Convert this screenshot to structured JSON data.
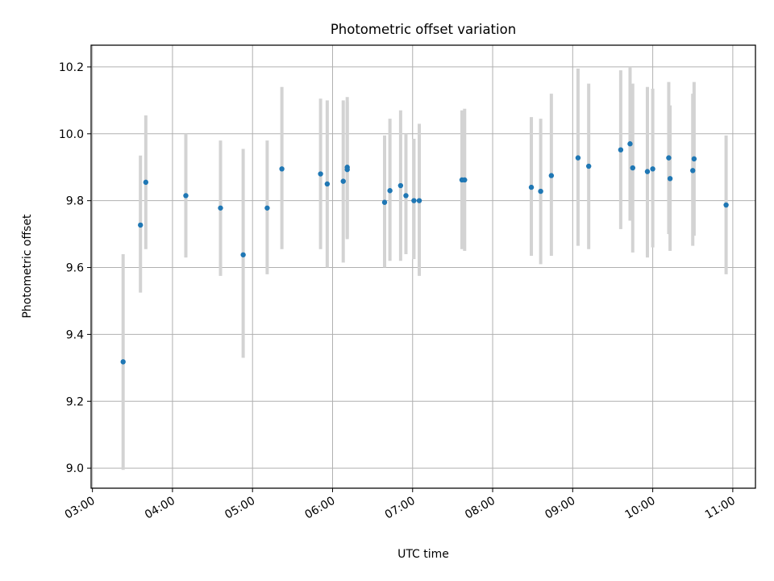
{
  "chart_data": {
    "type": "scatter",
    "title": "Photometric offset variation",
    "xlabel": "UTC time",
    "ylabel": "Photometric offset",
    "xlim": [
      "02:59",
      "11:17"
    ],
    "ylim": [
      8.94,
      10.265
    ],
    "grid": true,
    "x_ticks": [
      "03:00",
      "04:00",
      "05:00",
      "06:00",
      "07:00",
      "08:00",
      "09:00",
      "10:00",
      "11:00"
    ],
    "y_ticks": [
      9.0,
      9.2,
      9.4,
      9.6,
      9.8,
      10.0,
      10.2
    ],
    "series": [
      {
        "marker_color": "#1f77b4",
        "errorbar_color": "#d3d3d3",
        "points": [
          {
            "x": "03:23",
            "y": 9.318,
            "low": 8.995,
            "high": 9.64
          },
          {
            "x": "03:36",
            "y": 9.727,
            "low": 9.525,
            "high": 9.935
          },
          {
            "x": "03:40",
            "y": 9.855,
            "low": 9.655,
            "high": 10.055
          },
          {
            "x": "04:10",
            "y": 9.815,
            "low": 9.63,
            "high": 10.0
          },
          {
            "x": "04:36",
            "y": 9.778,
            "low": 9.575,
            "high": 9.98
          },
          {
            "x": "04:53",
            "y": 9.638,
            "low": 9.33,
            "high": 9.955
          },
          {
            "x": "05:11",
            "y": 9.778,
            "low": 9.58,
            "high": 9.98
          },
          {
            "x": "05:22",
            "y": 9.895,
            "low": 9.655,
            "high": 10.14
          },
          {
            "x": "05:51",
            "y": 9.88,
            "low": 9.655,
            "high": 10.105
          },
          {
            "x": "05:56",
            "y": 9.85,
            "low": 9.6,
            "high": 10.1
          },
          {
            "x": "06:08",
            "y": 9.858,
            "low": 9.615,
            "high": 10.1
          },
          {
            "x": "06:11",
            "y": 9.9,
            "low": 9.685,
            "high": 10.11
          },
          {
            "x": "06:11",
            "y": 9.893,
            "low": 9.69,
            "high": 10.095
          },
          {
            "x": "06:39",
            "y": 9.795,
            "low": 9.6,
            "high": 9.995
          },
          {
            "x": "06:43",
            "y": 9.83,
            "low": 9.62,
            "high": 10.045
          },
          {
            "x": "06:51",
            "y": 9.845,
            "low": 9.62,
            "high": 10.07
          },
          {
            "x": "06:55",
            "y": 9.815,
            "low": 9.64,
            "high": 10.0
          },
          {
            "x": "07:01",
            "y": 9.8,
            "low": 9.625,
            "high": 9.985
          },
          {
            "x": "07:05",
            "y": 9.8,
            "low": 9.575,
            "high": 10.03
          },
          {
            "x": "07:37",
            "y": 9.862,
            "low": 9.655,
            "high": 10.07
          },
          {
            "x": "07:39",
            "y": 9.862,
            "low": 9.65,
            "high": 10.075
          },
          {
            "x": "08:29",
            "y": 9.84,
            "low": 9.635,
            "high": 10.05
          },
          {
            "x": "08:36",
            "y": 9.828,
            "low": 9.61,
            "high": 10.045
          },
          {
            "x": "08:44",
            "y": 9.875,
            "low": 9.635,
            "high": 10.12
          },
          {
            "x": "09:04",
            "y": 9.928,
            "low": 9.665,
            "high": 10.195
          },
          {
            "x": "09:12",
            "y": 9.903,
            "low": 9.655,
            "high": 10.15
          },
          {
            "x": "09:36",
            "y": 9.952,
            "low": 9.715,
            "high": 10.19
          },
          {
            "x": "09:43",
            "y": 9.97,
            "low": 9.74,
            "high": 10.2
          },
          {
            "x": "09:45",
            "y": 9.898,
            "low": 9.645,
            "high": 10.15
          },
          {
            "x": "09:56",
            "y": 9.887,
            "low": 9.63,
            "high": 10.14
          },
          {
            "x": "10:00",
            "y": 9.895,
            "low": 9.66,
            "high": 10.135
          },
          {
            "x": "10:12",
            "y": 9.928,
            "low": 9.7,
            "high": 10.155
          },
          {
            "x": "10:13",
            "y": 9.866,
            "low": 9.65,
            "high": 10.085
          },
          {
            "x": "10:30",
            "y": 9.89,
            "low": 9.665,
            "high": 10.12
          },
          {
            "x": "10:31",
            "y": 9.925,
            "low": 9.695,
            "high": 10.155
          },
          {
            "x": "10:55",
            "y": 9.787,
            "low": 9.58,
            "high": 9.995
          }
        ]
      }
    ]
  }
}
